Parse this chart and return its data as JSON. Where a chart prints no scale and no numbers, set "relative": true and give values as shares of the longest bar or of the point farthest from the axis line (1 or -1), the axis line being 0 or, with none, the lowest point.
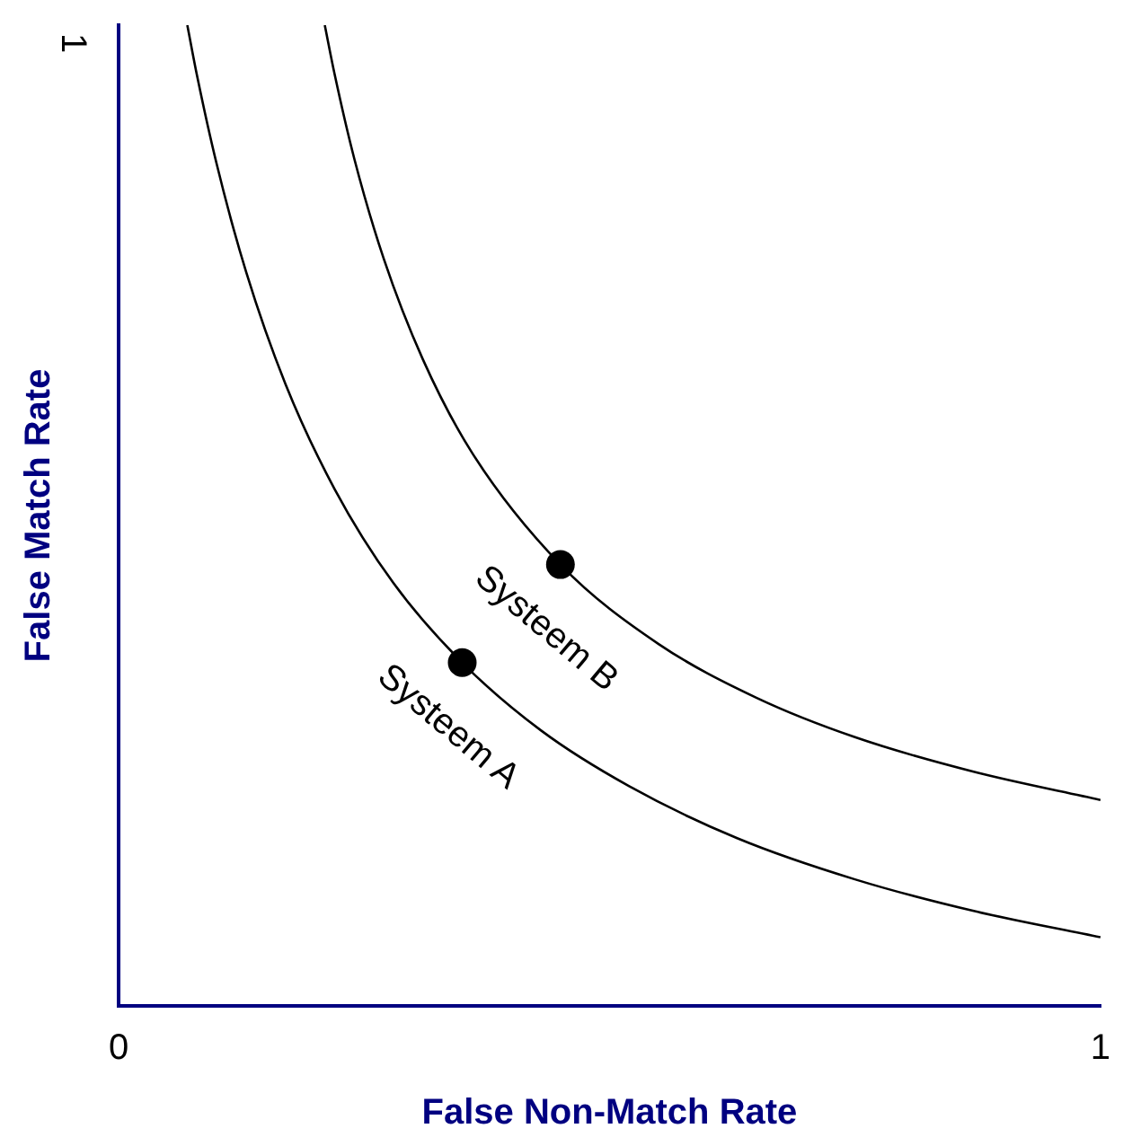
{
  "chart_data": {
    "type": "line",
    "xlabel": "False Non-Match Rate",
    "ylabel": "False Match Rate",
    "xlim": [
      0,
      1
    ],
    "relative": true,
    "annotations": [
      "1"
    ],
    "xticks": [
      0,
      1
    ],
    "grid": false,
    "legend": false,
    "marker": "none",
    "line_style": "solid",
    "series": [
      {
        "name": "Systeem A",
        "type": "line",
        "color": "#000000",
        "x": [
          0.07,
          0.08,
          0.1,
          0.13,
          0.17,
          0.22,
          0.28,
          0.35,
          0.43,
          0.52,
          0.63,
          0.75,
          0.87,
          1.0
        ],
        "values": [
          1.0,
          0.948,
          0.858,
          0.748,
          0.634,
          0.527,
          0.431,
          0.35,
          0.281,
          0.224,
          0.171,
          0.129,
          0.097,
          0.07
        ]
      },
      {
        "name": "Systeem B",
        "type": "line",
        "color": "#000000",
        "x": [
          0.21,
          0.22,
          0.24,
          0.27,
          0.31,
          0.36,
          0.45,
          0.55,
          0.65,
          0.75,
          0.87,
          1.0
        ],
        "values": [
          1.0,
          0.95,
          0.864,
          0.762,
          0.659,
          0.564,
          0.45,
          0.369,
          0.314,
          0.274,
          0.239,
          0.21
        ]
      },
      {
        "type": "scatter",
        "marker": "circle",
        "color": "#000000",
        "x": [
          0.35,
          0.45
        ],
        "values": [
          0.35,
          0.45
        ]
      }
    ]
  }
}
